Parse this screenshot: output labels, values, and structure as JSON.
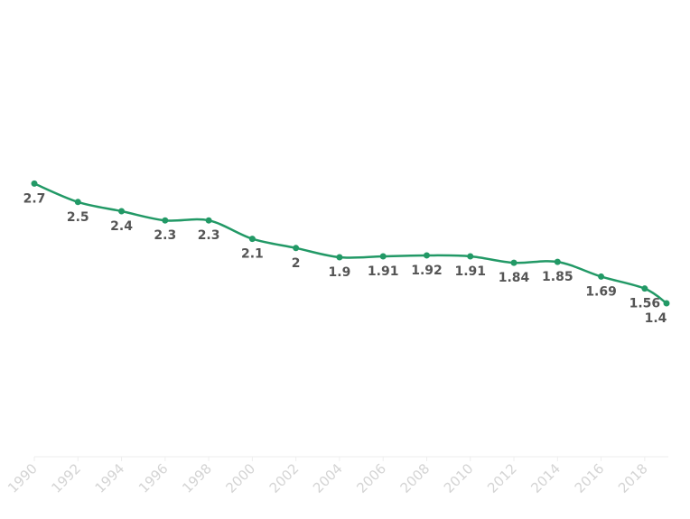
{
  "chart_data": {
    "type": "line",
    "title": "",
    "xlabel": "",
    "ylabel": "",
    "x": [
      1990,
      1992,
      1994,
      1996,
      1998,
      2000,
      2002,
      2004,
      2006,
      2008,
      2010,
      2012,
      2014,
      2016,
      2018,
      2019
    ],
    "series": [
      {
        "values": [
          2.7,
          2.5,
          2.4,
          2.3,
          2.3,
          2.1,
          2,
          1.9,
          1.91,
          1.92,
          1.91,
          1.84,
          1.85,
          1.69,
          1.56,
          1.4
        ],
        "labels": [
          "2.7",
          "2.5",
          "2.4",
          "2.3",
          "2.3",
          "2.1",
          "2",
          "1.9",
          "1.91",
          "1.92",
          "1.91",
          "1.84",
          "1.85",
          "1.69",
          "1.56",
          "1.4"
        ]
      }
    ],
    "x_ticks": [
      "1990",
      "1992",
      "1994",
      "1996",
      "1998",
      "2000",
      "2002",
      "2004",
      "2006",
      "2008",
      "2010",
      "2012",
      "2014",
      "2016",
      "2018"
    ],
    "xlim": [
      1990,
      2019
    ],
    "ylim": [
      0.7,
      2.86
    ],
    "grid": false,
    "legend": "none",
    "colors": {
      "line": "#229966",
      "tick_text": "#d4d4d4",
      "label_text": "#555555",
      "axis": "#eeeeee"
    }
  }
}
